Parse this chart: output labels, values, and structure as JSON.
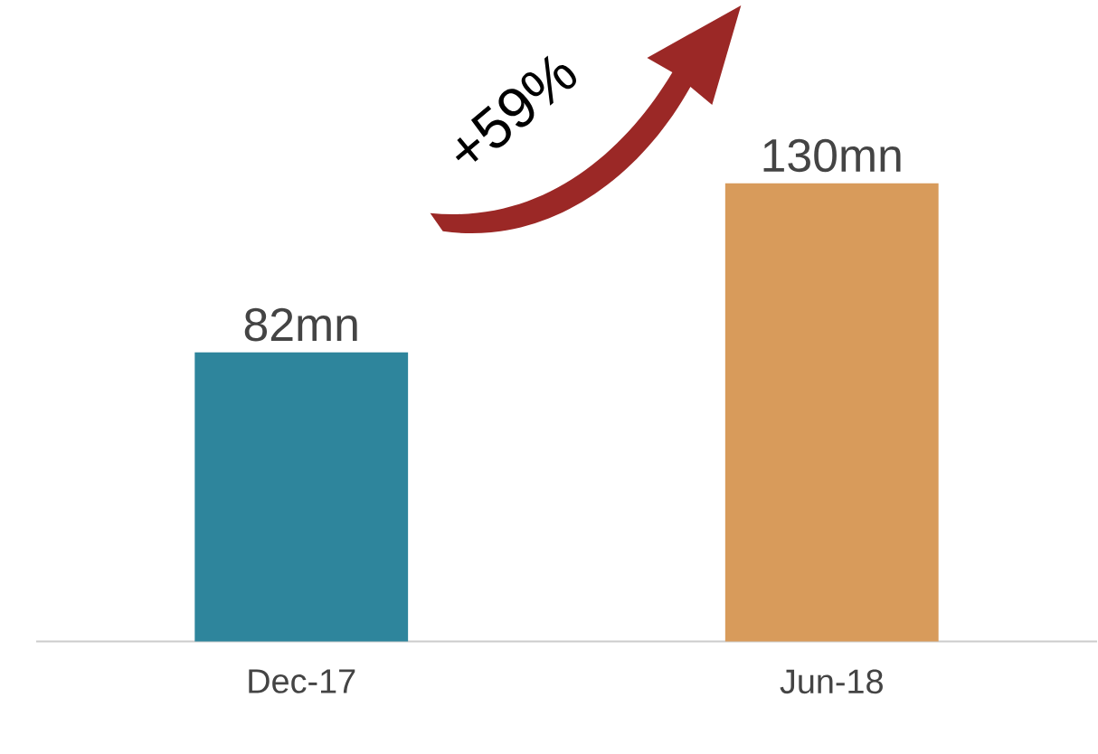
{
  "chart_data": {
    "type": "bar",
    "categories": [
      "Dec-17",
      "Jun-18"
    ],
    "values": [
      82,
      130
    ],
    "value_labels": [
      "82mn",
      "130mn"
    ],
    "colors": [
      "#2e859c",
      "#d89b5b"
    ],
    "annotations": [
      "+59%"
    ]
  }
}
